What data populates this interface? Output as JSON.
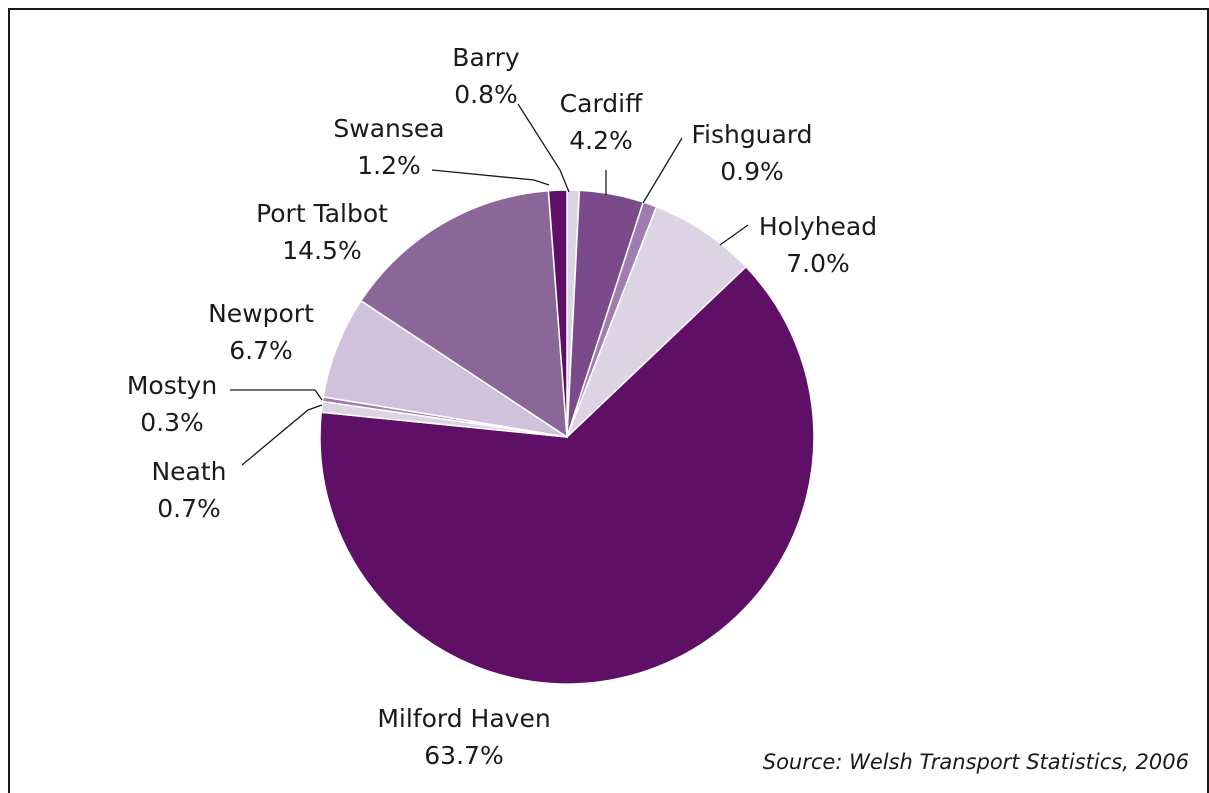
{
  "chart_data": {
    "type": "pie",
    "title": "",
    "slices": [
      {
        "label": "Barry",
        "value": 0.8,
        "display": "0.8%",
        "color": "#dcd3e5"
      },
      {
        "label": "Cardiff",
        "value": 4.2,
        "display": "4.2%",
        "color": "#7a4a8b"
      },
      {
        "label": "Fishguard",
        "value": 0.9,
        "display": "0.9%",
        "color": "#a07cb0"
      },
      {
        "label": "Holyhead",
        "value": 7.0,
        "display": "7.0%",
        "color": "#dcd3e5"
      },
      {
        "label": "Milford Haven",
        "value": 63.7,
        "display": "63.7%",
        "color": "#5f0f66"
      },
      {
        "label": "Neath",
        "value": 0.7,
        "display": "0.7%",
        "color": "#dcd3e5"
      },
      {
        "label": "Mostyn",
        "value": 0.3,
        "display": "0.3%",
        "color": "#a07cb0"
      },
      {
        "label": "Newport",
        "value": 6.7,
        "display": "6.7%",
        "color": "#d1c2dc"
      },
      {
        "label": "Port Talbot",
        "value": 14.5,
        "display": "14.5%",
        "color": "#8a6797"
      },
      {
        "label": "Swansea",
        "value": 1.2,
        "display": "1.2%",
        "color": "#5f0f66"
      }
    ],
    "source": "Source: Welsh Transport Statistics, 2006"
  }
}
